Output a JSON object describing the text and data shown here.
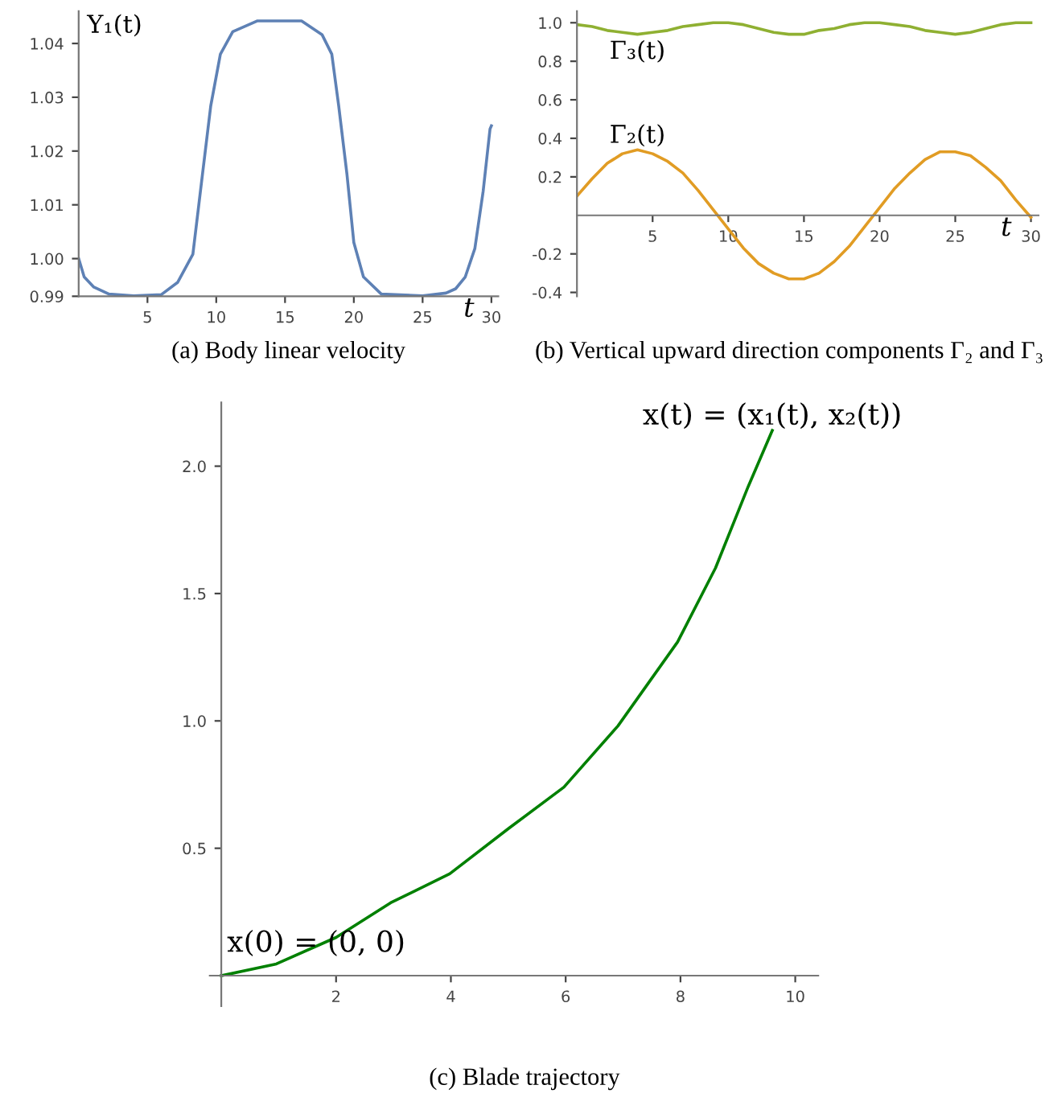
{
  "chart_data": [
    {
      "type": "line",
      "ylabel": "Y₁(t)",
      "xlabel": "t",
      "annotations": [
        "(a) Body linear velocity"
      ],
      "xlim": [
        0,
        30.5
      ],
      "ylim": [
        0.993,
        1.046
      ],
      "xticks": [
        5,
        10,
        15,
        20,
        25,
        30
      ],
      "yticks": [
        {
          "value": 0.993,
          "label": "0.99"
        },
        {
          "value": 1.0,
          "label": "1.00"
        },
        1.01,
        1.02,
        1.03,
        1.04
      ],
      "grid": false,
      "legend": false,
      "series": [
        {
          "color": "#5e81b5",
          "x": [
            0,
            0.4,
            1.1,
            2.2,
            4,
            6,
            7.2,
            8.3,
            9.0,
            9.6,
            10.3,
            11.2,
            13,
            16.2,
            17.7,
            18.4,
            18.9,
            19.5,
            20.0,
            20.7,
            22,
            25,
            26.7,
            27.4,
            28.1,
            28.8,
            29.4,
            29.9,
            30
          ],
          "values": [
            1.0,
            0.9966,
            0.9947,
            0.9934,
            0.9931,
            0.9933,
            0.9956,
            1.0008,
            1.0157,
            1.0284,
            1.038,
            1.0422,
            1.0442,
            1.0442,
            1.0416,
            1.038,
            1.0284,
            1.0157,
            1.003,
            0.9966,
            0.9934,
            0.9931,
            0.9936,
            0.9944,
            0.9966,
            1.0019,
            1.0125,
            1.0241,
            1.0247
          ]
        }
      ]
    },
    {
      "type": "line",
      "xlabel": "t",
      "annotations": [
        "(b) Vertical upward direction components Γ₂ and Γ₃"
      ],
      "xlim": [
        0,
        30.5
      ],
      "ylim": [
        -0.42,
        1.06
      ],
      "xticks": [
        5,
        10,
        15,
        20,
        25,
        30
      ],
      "yticks": [
        -0.4,
        -0.2,
        0.2,
        0.4,
        0.6,
        0.8,
        {
          "value": 1,
          "label": "1.0"
        }
      ],
      "grid": false,
      "legend": false,
      "x": [
        0,
        1,
        2,
        3,
        4,
        5,
        6,
        7,
        8,
        9,
        10,
        11,
        12,
        13,
        14,
        15,
        16,
        17,
        18,
        19,
        20,
        21,
        22,
        23,
        24,
        25,
        26,
        27,
        28,
        29,
        30
      ],
      "series": [
        {
          "name": "Γ₃(t)",
          "color": "#8fb032",
          "values": [
            0.99,
            0.98,
            0.96,
            0.95,
            0.94,
            0.95,
            0.96,
            0.98,
            0.99,
            1.0,
            1.0,
            0.99,
            0.97,
            0.95,
            0.94,
            0.94,
            0.96,
            0.97,
            0.99,
            1.0,
            1.0,
            0.99,
            0.98,
            0.96,
            0.95,
            0.94,
            0.95,
            0.97,
            0.99,
            1.0,
            1.0
          ]
        },
        {
          "name": "Γ₂(t)",
          "color": "#e19c24",
          "values": [
            0.1,
            0.19,
            0.27,
            0.32,
            0.34,
            0.32,
            0.28,
            0.22,
            0.13,
            0.03,
            -0.07,
            -0.17,
            -0.25,
            -0.3,
            -0.33,
            -0.33,
            -0.3,
            -0.24,
            -0.16,
            -0.06,
            0.04,
            0.14,
            0.22,
            0.29,
            0.33,
            0.33,
            0.31,
            0.25,
            0.18,
            0.08,
            -0.01
          ]
        }
      ]
    },
    {
      "type": "line",
      "annotations": [
        {
          "text": "x(0) = (0, 0)",
          "x": 0,
          "y": 0
        },
        {
          "text": "x(t) = (x₁(t), x₂(t))",
          "x": 9.6,
          "y": 2.14
        },
        "(c) Blade trajectory"
      ],
      "xlim": [
        -0.2,
        10.4
      ],
      "ylim": [
        -0.12,
        2.25
      ],
      "xticks": [
        2,
        4,
        6,
        8,
        10
      ],
      "yticks": [
        0.5,
        {
          "value": 1,
          "label": "1.0"
        },
        1.5,
        {
          "value": 2,
          "label": "2.0"
        }
      ],
      "grid": false,
      "legend": false,
      "series": [
        {
          "color": "#008000",
          "x": [
            0,
            0.96,
            2.0,
            2.95,
            3.98,
            5.02,
            5.97,
            6.91,
            7.95,
            8.61,
            9.18,
            9.6
          ],
          "values": [
            0,
            0.046,
            0.15,
            0.286,
            0.4,
            0.58,
            0.74,
            0.98,
            1.31,
            1.6,
            1.92,
            2.14
          ]
        }
      ]
    }
  ]
}
